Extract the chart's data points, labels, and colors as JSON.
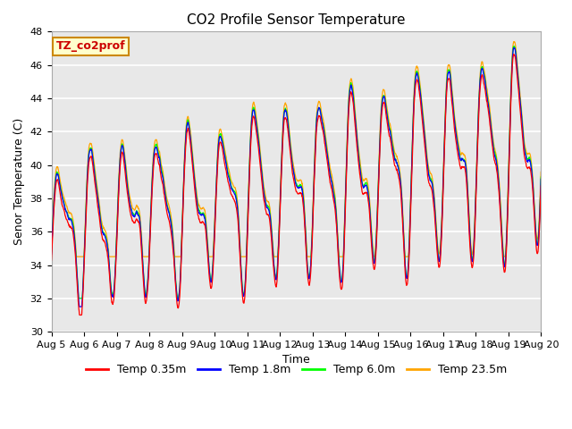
{
  "title": "CO2 Profile Sensor Temperature",
  "ylabel": "Senor Temperature (C)",
  "xlabel": "Time",
  "ylim": [
    30,
    48
  ],
  "xlim": [
    0,
    15
  ],
  "x_tick_labels": [
    "Aug 5",
    "Aug 6",
    "Aug 7",
    "Aug 8",
    "Aug 9",
    "Aug 10",
    "Aug 11",
    "Aug 12",
    "Aug 13",
    "Aug 14",
    "Aug 15",
    "Aug 16",
    "Aug 17",
    "Aug 18",
    "Aug 19",
    "Aug 20"
  ],
  "series_colors": [
    "red",
    "blue",
    "lime",
    "orange"
  ],
  "series_labels": [
    "Temp 0.35m",
    "Temp 1.8m",
    "Temp 6.0m",
    "Temp 23.5m"
  ],
  "annotation_text": "TZ_co2prof",
  "annotation_color": "#cc0000",
  "annotation_bg": "#ffffcc",
  "annotation_border": "#cc8800",
  "plot_bg": "#e8e8e8",
  "grid_color": "white",
  "title_fontsize": 11,
  "label_fontsize": 9,
  "tick_fontsize": 8,
  "legend_fontsize": 9
}
